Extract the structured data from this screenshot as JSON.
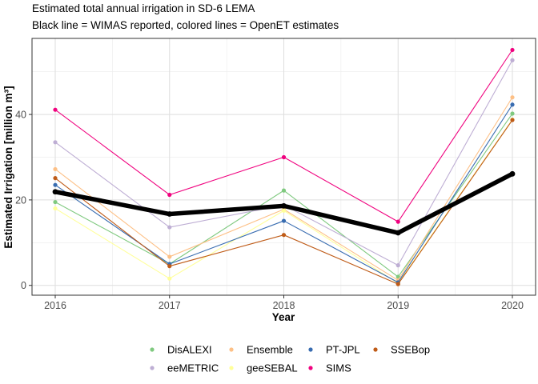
{
  "chart_data": {
    "type": "line",
    "title": "Estimated total annual irrigation in SD-6 LEMA",
    "subtitle": "Black line = WIMAS reported, colored lines = OpenET estimates",
    "xlabel": "Year",
    "ylabel": "Estimated Irrigation [million m³]",
    "x": [
      2016,
      2017,
      2018,
      2019,
      2020
    ],
    "x_ticks": [
      "2016",
      "2017",
      "2018",
      "2019",
      "2020"
    ],
    "y_ticks": [
      0,
      20,
      40
    ],
    "y_tick_labels": [
      "0",
      "20",
      "40"
    ],
    "ylim": [
      -2.3,
      57.8
    ],
    "grid": true,
    "legend_position": "bottom",
    "series": [
      {
        "name": "DisALEXI",
        "color": "#7fc97f",
        "values": [
          19.5,
          5.0,
          22.2,
          2.0,
          40.2
        ]
      },
      {
        "name": "eeMETRIC",
        "color": "#beaed4",
        "values": [
          33.5,
          13.6,
          18.8,
          4.7,
          52.7
        ]
      },
      {
        "name": "Ensemble",
        "color": "#fdc086",
        "values": [
          27.2,
          6.7,
          17.8,
          1.2,
          44.0
        ]
      },
      {
        "name": "geeSEBAL",
        "color": "#ffff99",
        "values": [
          18.0,
          1.6,
          17.5,
          0.5,
          38.8
        ]
      },
      {
        "name": "PT-JPL",
        "color": "#386cb0",
        "values": [
          23.5,
          5.0,
          15.1,
          0.7,
          42.3
        ]
      },
      {
        "name": "SIMS",
        "color": "#f0027f",
        "values": [
          41.1,
          21.2,
          30.0,
          14.9,
          55.1
        ]
      },
      {
        "name": "SSEBop",
        "color": "#bf5b17",
        "values": [
          25.1,
          4.5,
          11.8,
          0.3,
          38.7
        ]
      },
      {
        "name": "WIMAS",
        "color": "#000000",
        "values": [
          21.9,
          16.7,
          18.6,
          12.3,
          26.1
        ],
        "reported": true
      }
    ],
    "legend_rows": [
      [
        "DisALEXI",
        "Ensemble",
        "PT-JPL",
        "SSEBop"
      ],
      [
        "eeMETRIC",
        "geeSEBAL",
        "SIMS"
      ]
    ]
  }
}
